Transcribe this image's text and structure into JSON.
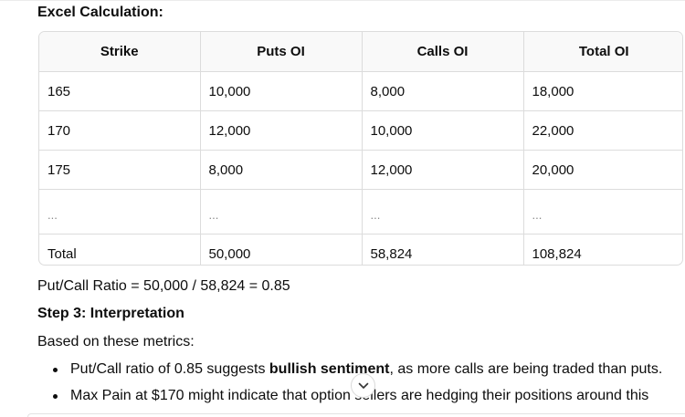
{
  "heading": "Excel Calculation:",
  "table": {
    "headers": [
      "Strike",
      "Puts OI",
      "Calls OI",
      "Total OI"
    ],
    "rows": [
      [
        "165",
        "10,000",
        "8,000",
        "18,000"
      ],
      [
        "170",
        "12,000",
        "10,000",
        "22,000"
      ],
      [
        "175",
        "8,000",
        "12,000",
        "20,000"
      ],
      [
        "...",
        "...",
        "...",
        "..."
      ],
      [
        "Total",
        "50,000",
        "58,824",
        "108,824"
      ]
    ]
  },
  "ratio_line": "Put/Call Ratio = 50,000 / 58,824 = 0.85",
  "step_heading": "Step 3: Interpretation",
  "intro": "Based on these metrics:",
  "bullets": [
    {
      "before": "Put/Call ratio of 0.85 suggests ",
      "bold": "bullish sentiment",
      "after": ", as more calls are being traded than puts."
    },
    {
      "text": "Max Pain at $170 might indicate that option sellers are hedging their positions around this"
    }
  ],
  "icons": {
    "scroll_down": "chevron-down-icon"
  }
}
